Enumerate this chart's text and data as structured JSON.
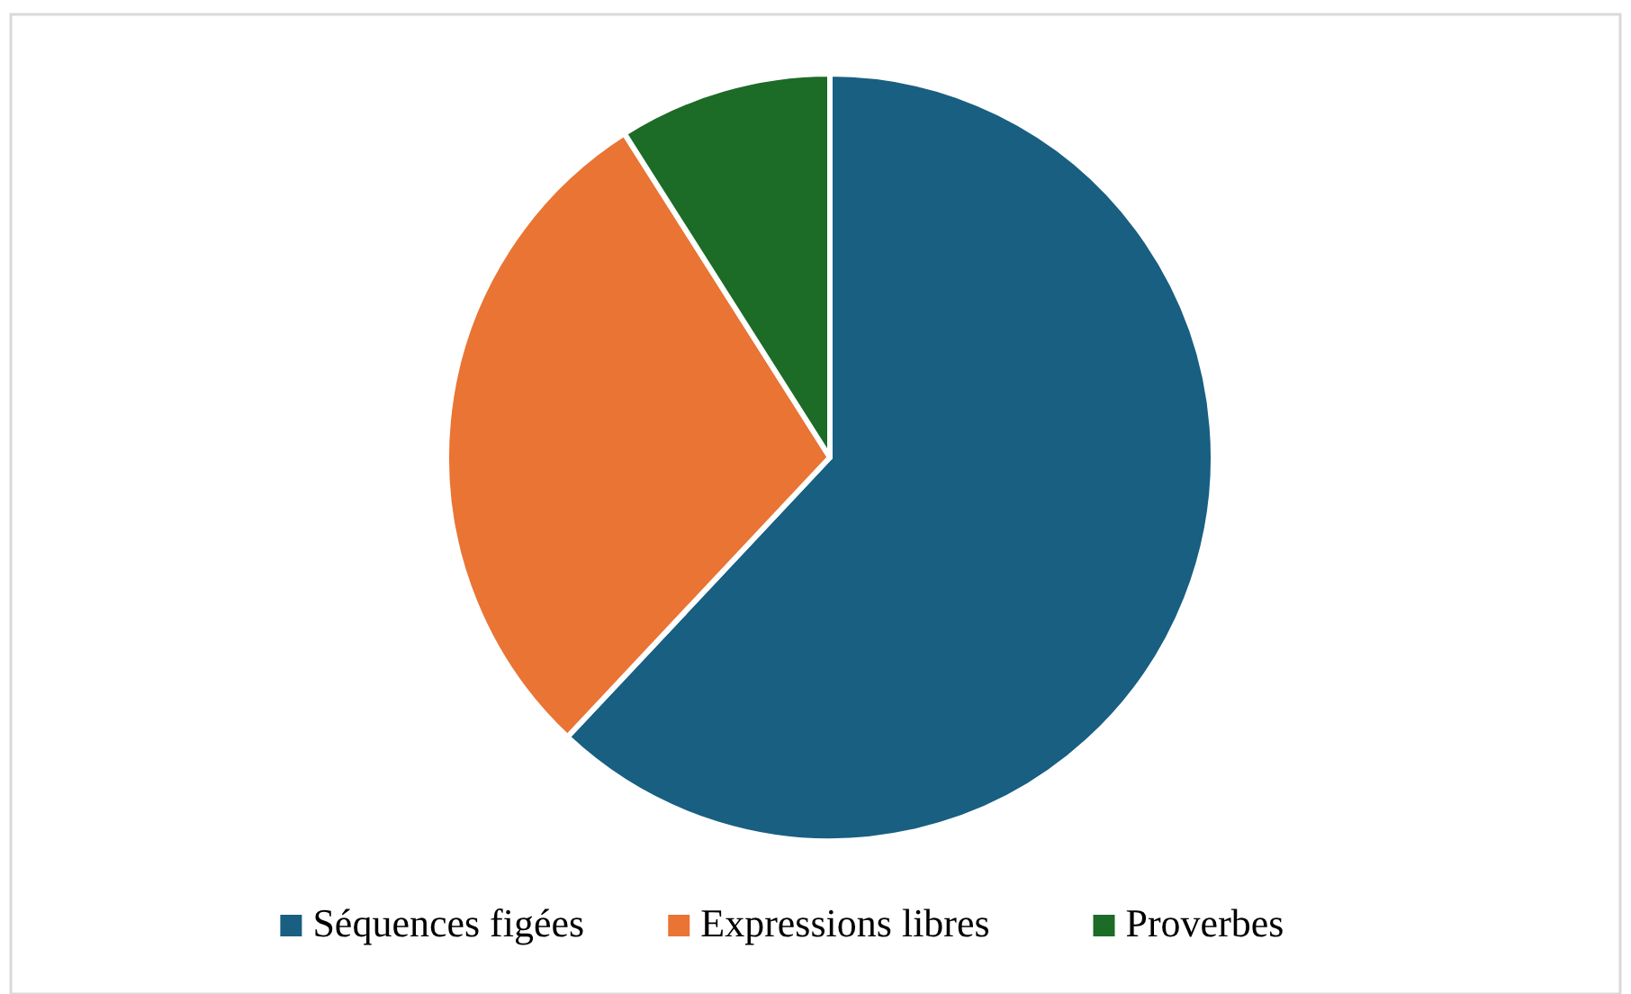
{
  "chart_data": {
    "type": "pie",
    "categories": [
      "Séquences figées",
      "Expressions libres",
      "Proverbes"
    ],
    "values": [
      62,
      29,
      9
    ],
    "colors": [
      "#185f82",
      "#e97434",
      "#1c6b26"
    ],
    "legend": "bottom"
  }
}
